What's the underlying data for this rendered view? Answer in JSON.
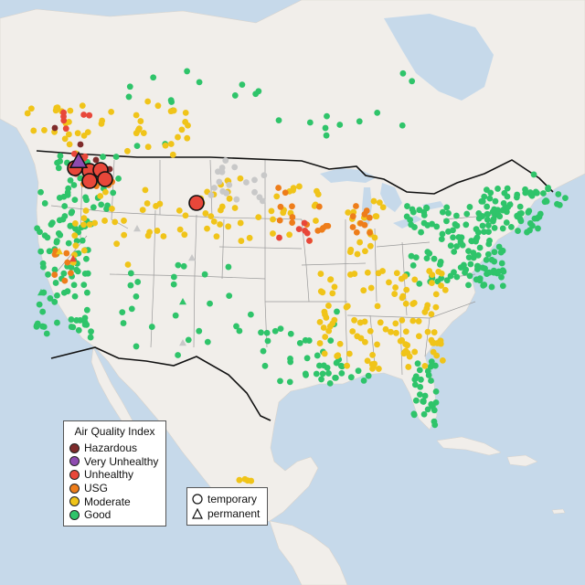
{
  "legend": {
    "title": "Air Quality Index",
    "categories": [
      {
        "label": "Hazardous",
        "color": "#7e2b2b"
      },
      {
        "label": "Very Unhealthy",
        "color": "#8e4bb0"
      },
      {
        "label": "Unhealthy",
        "color": "#e8473a"
      },
      {
        "label": "USG",
        "color": "#ee7d1a"
      },
      {
        "label": "Moderate",
        "color": "#f0c419"
      },
      {
        "label": "Good",
        "color": "#2fc46a"
      }
    ]
  },
  "type_legend": {
    "temporary": "temporary",
    "permanent": "permanent"
  },
  "colors": {
    "water": "#c6d9ea",
    "land": "#f1eeea",
    "no_data": "#c8c8c8"
  }
}
